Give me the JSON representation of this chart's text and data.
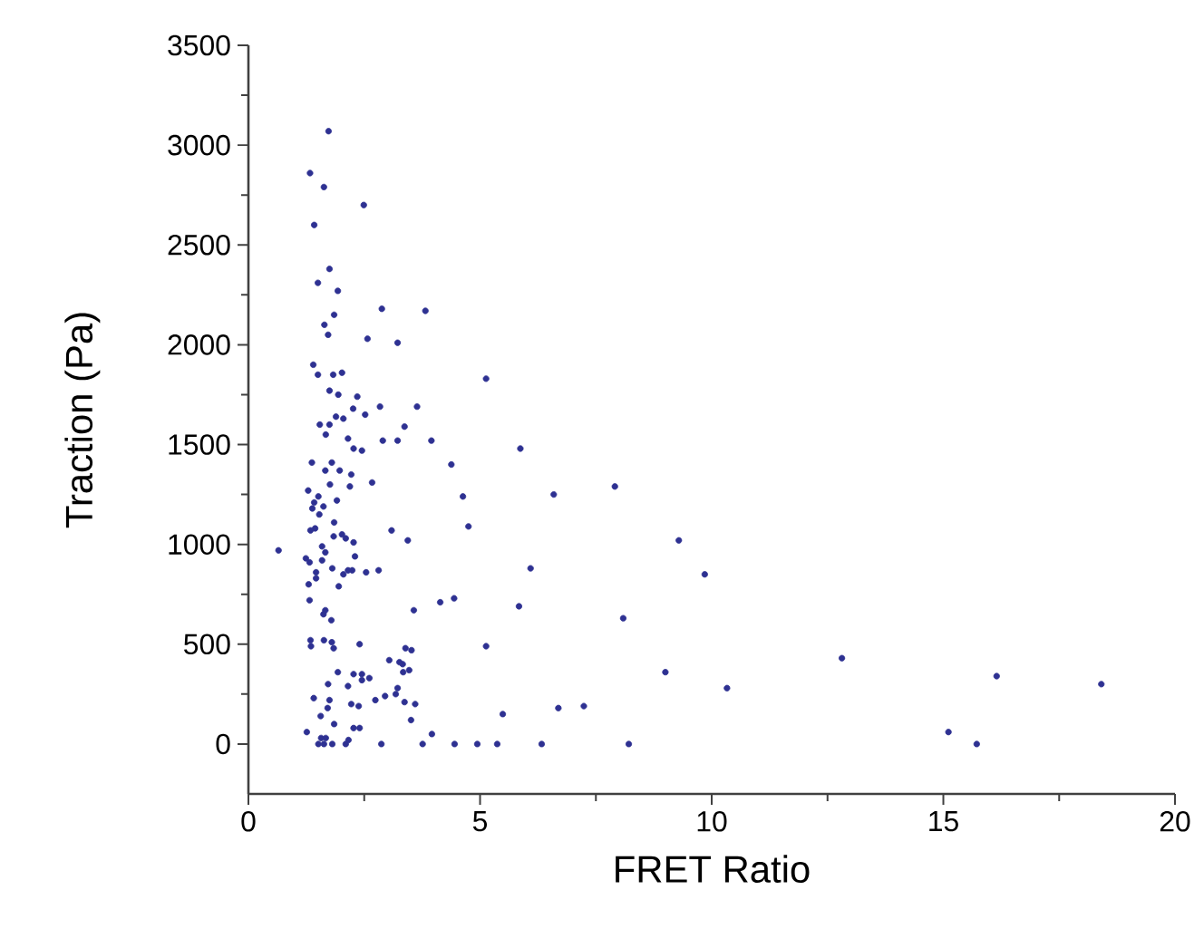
{
  "chart_data": {
    "type": "scatter",
    "xlabel": "FRET Ratio",
    "ylabel": "Traction (Pa)",
    "xlim": [
      0,
      20
    ],
    "ylim": [
      -250,
      3500
    ],
    "xticks": [
      0,
      5,
      10,
      15,
      20
    ],
    "yticks": [
      0,
      500,
      1000,
      1500,
      2000,
      2500,
      3000,
      3500
    ],
    "marker": "circle",
    "grid": false,
    "series": [
      {
        "color": "#2e3192",
        "x": [
          1.73,
          1.33,
          1.63,
          2.49,
          1.42,
          1.75,
          1.5,
          1.93,
          1.85,
          1.64,
          1.72,
          2.57,
          3.22,
          2.88,
          3.82,
          1.4,
          1.5,
          1.83,
          2.02,
          5.13,
          1.75,
          1.94,
          2.35,
          2.26,
          2.52,
          2.84,
          3.64,
          1.89,
          2.05,
          1.54,
          1.75,
          3.37,
          1.67,
          2.15,
          2.9,
          3.22,
          3.95,
          2.27,
          2.45,
          1.37,
          1.8,
          4.38,
          1.66,
          1.97,
          2.22,
          1.76,
          2.19,
          2.67,
          1.29,
          4.63,
          1.51,
          1.42,
          1.62,
          1.91,
          1.38,
          1.53,
          4.75,
          1.85,
          1.44,
          1.34,
          3.09,
          3.44,
          1.84,
          2.02,
          2.1,
          2.27,
          0.65,
          1.59,
          1.66,
          1.24,
          1.59,
          1.32,
          2.3,
          1.81,
          1.46,
          2.15,
          2.24,
          2.54,
          2.81,
          2.05,
          1.46,
          1.3,
          1.95,
          1.32,
          1.66,
          1.62,
          1.79,
          3.57,
          4.14,
          4.44,
          1.34,
          1.35,
          1.63,
          1.8,
          1.84,
          2.4,
          5.13,
          3.39,
          3.52,
          3.04,
          3.26,
          3.33,
          3.47,
          3.34,
          1.93,
          2.27,
          2.45,
          2.45,
          2.61,
          2.15,
          1.72,
          3.22,
          3.18,
          2.95,
          2.74,
          1.41,
          1.75,
          2.22,
          2.38,
          3.37,
          3.6,
          1.71,
          1.56,
          3.51,
          1.85,
          2.27,
          2.4,
          1.26,
          3.96,
          1.57,
          1.67,
          2.16,
          1.51,
          1.63,
          1.81,
          2.1,
          2.87,
          3.76,
          4.45,
          4.94,
          5.87,
          6.59,
          7.91,
          9.29,
          6.09,
          9.85,
          5.84,
          8.09,
          9.0,
          10.33,
          5.49,
          6.69,
          7.24,
          5.37,
          6.33,
          8.21,
          12.81,
          16.15,
          18.41,
          15.11,
          15.72
        ],
        "values": [
          3070,
          2860,
          2790,
          2700,
          2600,
          2380,
          2310,
          2270,
          2150,
          2100,
          2050,
          2030,
          2010,
          2180,
          2170,
          1900,
          1850,
          1850,
          1860,
          1830,
          1770,
          1750,
          1740,
          1680,
          1650,
          1690,
          1690,
          1640,
          1630,
          1600,
          1600,
          1590,
          1550,
          1530,
          1520,
          1520,
          1520,
          1480,
          1470,
          1410,
          1410,
          1400,
          1370,
          1370,
          1350,
          1300,
          1290,
          1310,
          1270,
          1240,
          1240,
          1210,
          1190,
          1220,
          1180,
          1150,
          1090,
          1110,
          1080,
          1070,
          1070,
          1020,
          1040,
          1050,
          1030,
          1010,
          970,
          990,
          960,
          930,
          920,
          910,
          940,
          880,
          860,
          870,
          870,
          860,
          870,
          850,
          830,
          800,
          790,
          720,
          670,
          650,
          620,
          670,
          710,
          730,
          520,
          490,
          520,
          510,
          480,
          500,
          490,
          480,
          470,
          420,
          410,
          400,
          370,
          360,
          360,
          350,
          350,
          320,
          330,
          290,
          300,
          280,
          250,
          240,
          220,
          230,
          220,
          200,
          190,
          210,
          200,
          180,
          140,
          120,
          100,
          80,
          80,
          60,
          50,
          30,
          30,
          20,
          0,
          0,
          0,
          0,
          0,
          0,
          0,
          0,
          1480,
          1250,
          1290,
          1020,
          880,
          850,
          690,
          630,
          360,
          280,
          150,
          180,
          190,
          0,
          0,
          0,
          430,
          340,
          300,
          60,
          0
        ]
      }
    ]
  }
}
